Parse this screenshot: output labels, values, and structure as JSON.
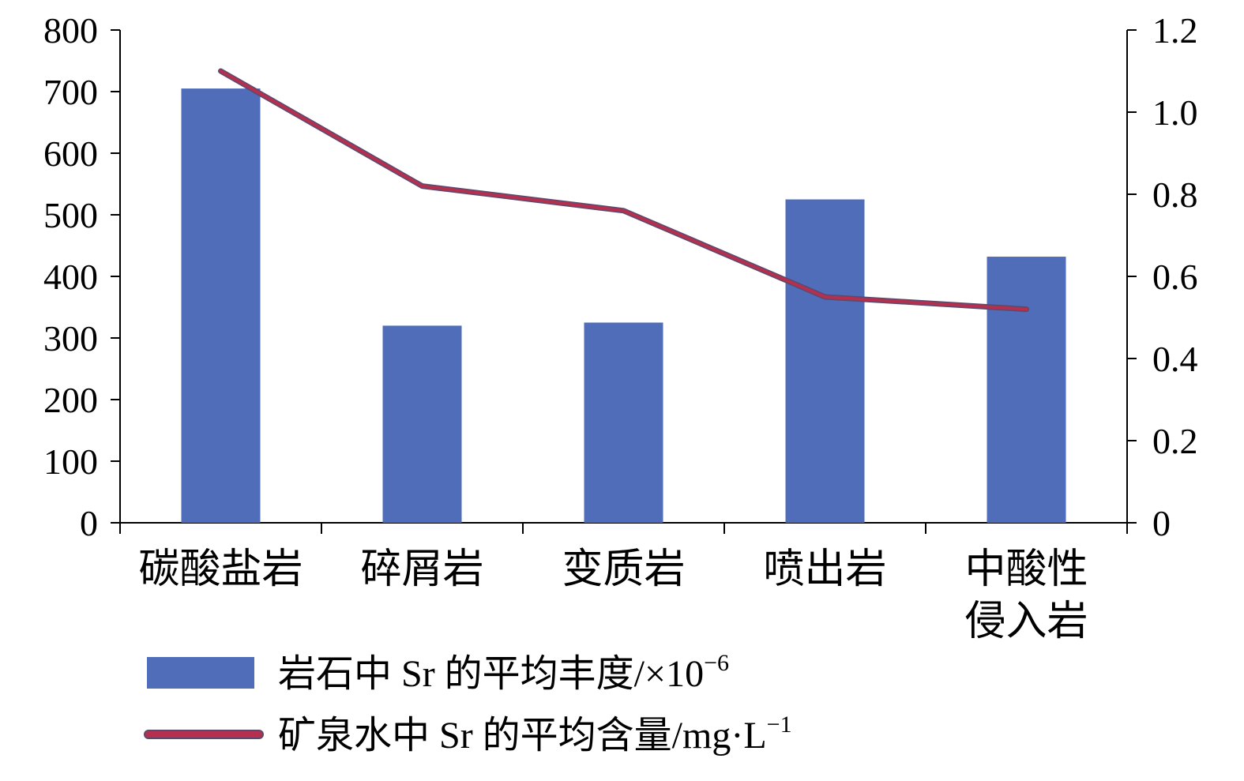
{
  "chart_data": {
    "type": "bar",
    "categories": [
      [
        "碳酸盐岩"
      ],
      [
        "碎屑岩"
      ],
      [
        "变质岩"
      ],
      [
        "喷出岩"
      ],
      [
        "中酸性",
        "侵入岩"
      ]
    ],
    "series": [
      {
        "name": "岩石中 Sr 的平均丰度/×10⁻⁶",
        "type": "bar",
        "axis": "left",
        "values": [
          705,
          320,
          325,
          525,
          432
        ],
        "color": "#4f6db8"
      },
      {
        "name": "矿泉水中 Sr 的平均含量/mg·L⁻¹",
        "type": "line",
        "axis": "right",
        "values": [
          1.1,
          0.82,
          0.76,
          0.55,
          0.52
        ],
        "color": "#b5304f"
      }
    ],
    "y_left": {
      "min": 0,
      "max": 800,
      "ticks": [
        0,
        100,
        200,
        300,
        400,
        500,
        600,
        700,
        800
      ],
      "tick_labels": [
        "0",
        "100",
        "200",
        "300",
        "400",
        "500",
        "600",
        "700",
        "800"
      ]
    },
    "y_right": {
      "min": 0,
      "max": 1.2,
      "ticks": [
        0,
        0.2,
        0.4,
        0.6,
        0.8,
        1.0,
        1.2
      ],
      "tick_labels": [
        "0",
        "0.2",
        "0.4",
        "0.6",
        "0.8",
        "1.0",
        "1.2"
      ]
    },
    "title": "",
    "xlabel": "",
    "ylabel": "",
    "grid": false,
    "legend_position": "bottom",
    "legend": [
      {
        "text": "岩石中 Sr 的平均丰度/×10",
        "sup": "−6",
        "kind": "bar",
        "color": "#4f6db8"
      },
      {
        "text": "矿泉水中 Sr 的平均含量/mg·L",
        "sup": "−1",
        "kind": "line",
        "color": "#b5304f"
      }
    ]
  }
}
